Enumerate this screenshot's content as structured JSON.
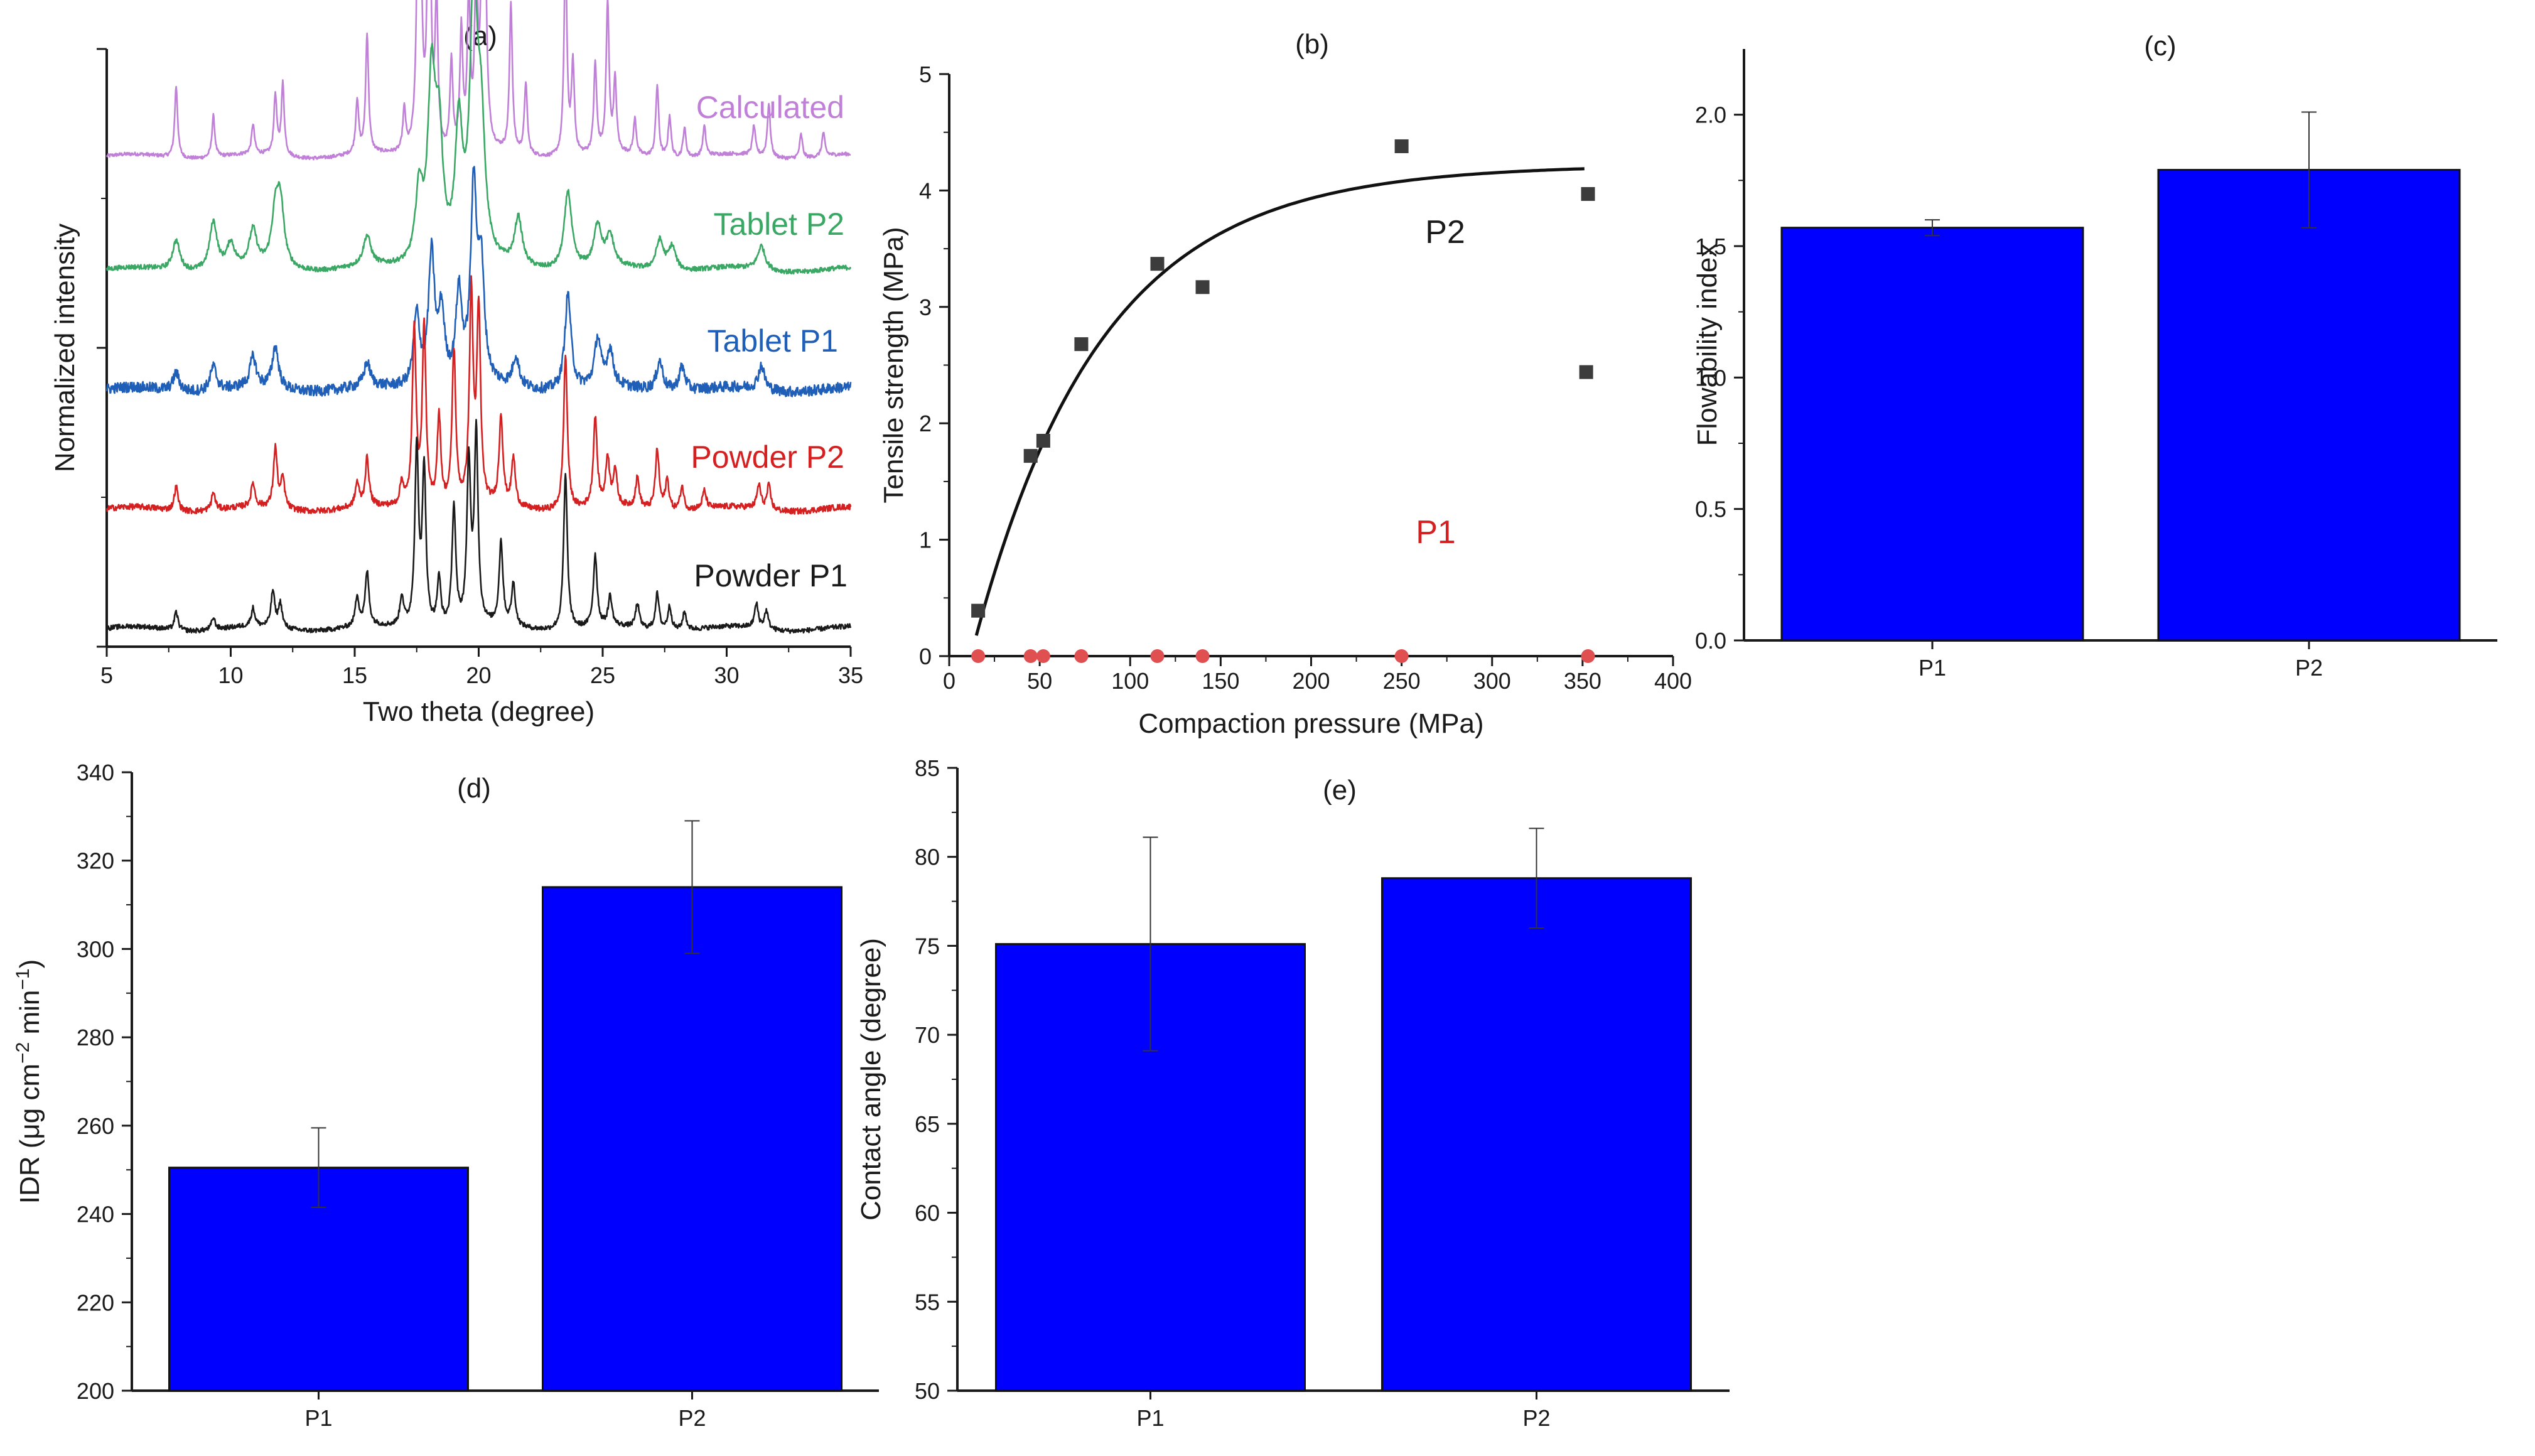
{
  "colors": {
    "axis": "#1a1a1a",
    "bar": "#0000ff",
    "calculated": "#c080d8",
    "tablet_p2": "#3aa864",
    "tablet_p1": "#1f5fb8",
    "powder_p2": "#d42020",
    "powder_p1": "#1a1a1a",
    "p2_points": "#3c3c3c",
    "p1_points": "#e05050"
  },
  "chart_data": [
    {
      "id": "a",
      "type": "line",
      "panel_label": "(a)",
      "xlabel": "Two theta (degree)",
      "ylabel": "Normalized intensity",
      "xlim": [
        5,
        35
      ],
      "xticks": [
        "5",
        "10",
        "15",
        "20",
        "25",
        "30",
        "35"
      ],
      "y_tick_labels_shown": false,
      "series": [
        {
          "name": "Calculated",
          "color_key": "calculated",
          "offset": 0.82,
          "noise": 0.003,
          "peaks": [
            [
              7.8,
              0.12
            ],
            [
              9.3,
              0.07
            ],
            [
              10.9,
              0.05
            ],
            [
              11.8,
              0.1
            ],
            [
              12.1,
              0.12
            ],
            [
              15.1,
              0.09
            ],
            [
              15.5,
              0.2
            ],
            [
              17.0,
              0.07
            ],
            [
              17.6,
              0.9
            ],
            [
              18.0,
              0.6
            ],
            [
              18.3,
              0.25
            ],
            [
              18.9,
              0.15
            ],
            [
              19.3,
              0.2
            ],
            [
              19.6,
              0.25
            ],
            [
              19.9,
              0.3
            ],
            [
              20.2,
              0.9
            ],
            [
              21.3,
              0.25
            ],
            [
              21.9,
              0.12
            ],
            [
              23.5,
              0.35
            ],
            [
              23.8,
              0.15
            ],
            [
              24.7,
              0.15
            ],
            [
              25.2,
              0.25
            ],
            [
              25.5,
              0.12
            ],
            [
              26.3,
              0.06
            ],
            [
              27.2,
              0.12
            ],
            [
              27.7,
              0.07
            ],
            [
              28.3,
              0.05
            ],
            [
              29.1,
              0.05
            ],
            [
              31.1,
              0.05
            ],
            [
              31.7,
              0.09
            ],
            [
              33.0,
              0.04
            ],
            [
              33.9,
              0.04
            ]
          ],
          "peak_width": 0.07
        },
        {
          "name": "Tablet P2",
          "color_key": "tablet_p2",
          "offset": 0.63,
          "noise": 0.004,
          "peaks": [
            [
              7.8,
              0.05
            ],
            [
              9.3,
              0.08
            ],
            [
              10.0,
              0.04
            ],
            [
              10.9,
              0.06
            ],
            [
              11.8,
              0.08
            ],
            [
              12.0,
              0.1
            ],
            [
              15.5,
              0.05
            ],
            [
              17.6,
              0.12
            ],
            [
              18.1,
              0.3
            ],
            [
              18.4,
              0.2
            ],
            [
              19.2,
              0.22
            ],
            [
              19.8,
              0.45
            ],
            [
              20.1,
              0.2
            ],
            [
              21.6,
              0.08
            ],
            [
              23.6,
              0.13
            ],
            [
              24.8,
              0.07
            ],
            [
              25.3,
              0.05
            ],
            [
              27.3,
              0.05
            ],
            [
              27.8,
              0.04
            ],
            [
              31.4,
              0.04
            ]
          ],
          "peak_width": 0.18
        },
        {
          "name": "Tablet P1",
          "color_key": "tablet_p1",
          "offset": 0.43,
          "noise": 0.009,
          "peaks": [
            [
              7.8,
              0.03
            ],
            [
              9.3,
              0.04
            ],
            [
              10.9,
              0.05
            ],
            [
              11.8,
              0.07
            ],
            [
              15.5,
              0.04
            ],
            [
              17.5,
              0.12
            ],
            [
              18.1,
              0.22
            ],
            [
              18.5,
              0.12
            ],
            [
              19.2,
              0.15
            ],
            [
              19.8,
              0.32
            ],
            [
              20.1,
              0.18
            ],
            [
              21.5,
              0.05
            ],
            [
              23.6,
              0.16
            ],
            [
              24.8,
              0.08
            ],
            [
              25.3,
              0.06
            ],
            [
              27.3,
              0.05
            ],
            [
              28.2,
              0.04
            ],
            [
              31.4,
              0.04
            ]
          ],
          "peak_width": 0.15
        },
        {
          "name": "Powder P2",
          "color_key": "powder_p2",
          "offset": 0.23,
          "noise": 0.005,
          "peaks": [
            [
              7.8,
              0.04
            ],
            [
              9.3,
              0.03
            ],
            [
              10.9,
              0.04
            ],
            [
              11.8,
              0.1
            ],
            [
              12.1,
              0.05
            ],
            [
              15.1,
              0.04
            ],
            [
              15.5,
              0.08
            ],
            [
              16.9,
              0.04
            ],
            [
              17.4,
              0.3
            ],
            [
              17.8,
              0.3
            ],
            [
              18.4,
              0.15
            ],
            [
              19.0,
              0.26
            ],
            [
              19.7,
              0.35
            ],
            [
              20.0,
              0.32
            ],
            [
              20.9,
              0.15
            ],
            [
              21.4,
              0.08
            ],
            [
              23.5,
              0.26
            ],
            [
              24.7,
              0.15
            ],
            [
              25.2,
              0.08
            ],
            [
              25.5,
              0.06
            ],
            [
              26.4,
              0.05
            ],
            [
              27.2,
              0.1
            ],
            [
              27.6,
              0.05
            ],
            [
              28.2,
              0.04
            ],
            [
              29.1,
              0.03
            ],
            [
              31.3,
              0.04
            ],
            [
              31.7,
              0.04
            ]
          ],
          "peak_width": 0.09
        },
        {
          "name": "Powder P1",
          "color_key": "powder_p1",
          "offset": 0.03,
          "noise": 0.004,
          "peaks": [
            [
              7.8,
              0.03
            ],
            [
              9.3,
              0.02
            ],
            [
              10.9,
              0.03
            ],
            [
              11.7,
              0.06
            ],
            [
              12.0,
              0.04
            ],
            [
              15.1,
              0.05
            ],
            [
              15.5,
              0.09
            ],
            [
              16.9,
              0.05
            ],
            [
              17.5,
              0.3
            ],
            [
              17.8,
              0.26
            ],
            [
              18.4,
              0.08
            ],
            [
              19.0,
              0.2
            ],
            [
              19.6,
              0.27
            ],
            [
              19.9,
              0.32
            ],
            [
              20.9,
              0.14
            ],
            [
              21.4,
              0.07
            ],
            [
              23.5,
              0.26
            ],
            [
              24.7,
              0.12
            ],
            [
              25.3,
              0.05
            ],
            [
              26.4,
              0.04
            ],
            [
              27.2,
              0.06
            ],
            [
              27.7,
              0.04
            ],
            [
              28.3,
              0.03
            ],
            [
              31.2,
              0.04
            ],
            [
              31.6,
              0.03
            ]
          ],
          "peak_width": 0.09
        }
      ]
    },
    {
      "id": "b",
      "type": "scatter",
      "panel_label": "(b)",
      "xlabel": "Compaction pressure (MPa)",
      "ylabel": "Tensile strength (MPa)",
      "xlim": [
        0,
        400
      ],
      "ylim": [
        0,
        5
      ],
      "xticks": [
        "0",
        "50",
        "100",
        "150",
        "200",
        "250",
        "300",
        "350",
        "400"
      ],
      "yticks": [
        "0",
        "1",
        "2",
        "3",
        "4",
        "5"
      ],
      "series": [
        {
          "name": "P2",
          "color_key": "p2_points",
          "marker": "square",
          "x": [
            16,
            45,
            52,
            73,
            115,
            140,
            250,
            353,
            352
          ],
          "y": [
            0.39,
            1.72,
            1.85,
            2.68,
            3.37,
            3.17,
            4.38,
            3.97,
            2.44
          ]
        },
        {
          "name": "P1",
          "color_key": "p1_points",
          "marker": "circle",
          "x": [
            16,
            45,
            52,
            73,
            115,
            140,
            250,
            353
          ],
          "y": [
            0,
            0,
            0,
            0,
            0,
            0,
            0,
            0
          ]
        }
      ],
      "fit": {
        "series": "P2",
        "model": "a*(1-exp(-(x-x0)/k))",
        "a": 4.22,
        "x0": 12,
        "k": 70,
        "x_range": [
          15,
          352
        ]
      },
      "annotations": [
        "P2",
        "P1"
      ]
    },
    {
      "id": "c",
      "type": "bar",
      "panel_label": "(c)",
      "ylabel": "Flowability index",
      "categories": [
        "P1",
        "P2"
      ],
      "values": [
        1.57,
        1.79
      ],
      "errors": [
        0.03,
        0.22
      ],
      "ylim": [
        0,
        2.25
      ],
      "yticks": [
        "0.0",
        "0.5",
        "1.0",
        "1.5",
        "2.0"
      ],
      "ytick_values": [
        0,
        0.5,
        1,
        1.5,
        2
      ]
    },
    {
      "id": "d",
      "type": "bar",
      "panel_label": "(d)",
      "ylabel_parts": [
        "IDR (μg cm",
        "−2",
        " min",
        "−1",
        ")"
      ],
      "categories": [
        "P1",
        "P2"
      ],
      "values": [
        250.5,
        314
      ],
      "errors": [
        9,
        15
      ],
      "ylim": [
        200,
        340
      ],
      "yticks": [
        "200",
        "220",
        "240",
        "260",
        "280",
        "300",
        "320",
        "340"
      ],
      "ytick_values": [
        200,
        220,
        240,
        260,
        280,
        300,
        320,
        340
      ]
    },
    {
      "id": "e",
      "type": "bar",
      "panel_label": "(e)",
      "ylabel": "Contact angle (degree)",
      "categories": [
        "P1",
        "P2"
      ],
      "values": [
        75.1,
        78.8
      ],
      "errors": [
        6,
        2.8
      ],
      "ylim": [
        50,
        85
      ],
      "yticks": [
        "50",
        "55",
        "60",
        "65",
        "70",
        "75",
        "80",
        "85"
      ],
      "ytick_values": [
        50,
        55,
        60,
        65,
        70,
        75,
        80,
        85
      ]
    }
  ]
}
